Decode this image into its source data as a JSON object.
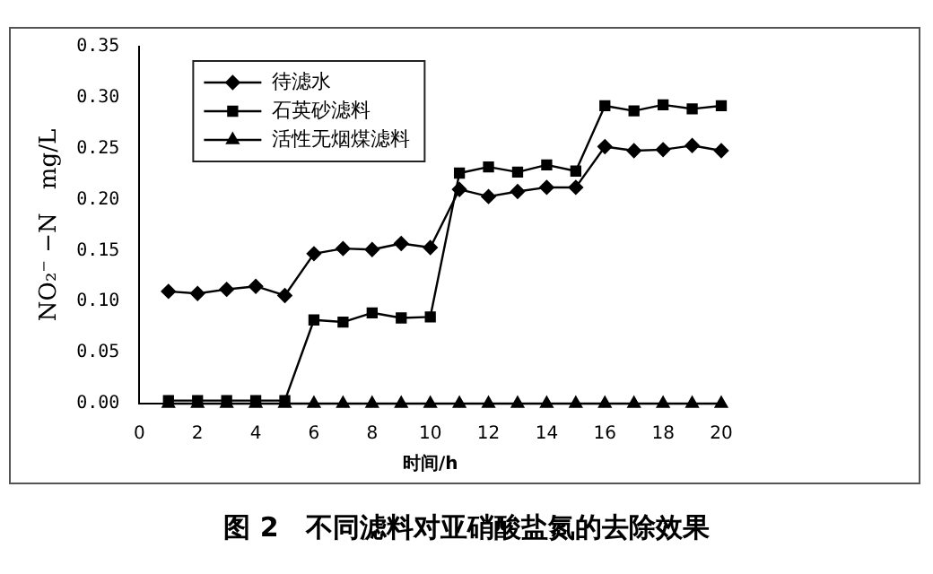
{
  "chart_data": {
    "type": "line",
    "title": "图 2　不同滤料对亚硝酸盐氮的去除效果",
    "xlabel": "时间/h",
    "ylabel": "NO₂⁻ −N　mg/L",
    "x": [
      1,
      2,
      3,
      4,
      5,
      6,
      7,
      8,
      9,
      10,
      11,
      12,
      13,
      14,
      15,
      16,
      17,
      18,
      19,
      20
    ],
    "xlim": [
      0,
      20
    ],
    "xticks": [
      0,
      2,
      4,
      6,
      8,
      10,
      12,
      14,
      16,
      18,
      20
    ],
    "ylim": [
      0,
      0.35
    ],
    "yticks": [
      {
        "value": 0,
        "label": "0.00"
      },
      {
        "value": 0.05,
        "label": "0.05"
      },
      {
        "value": 0.1,
        "label": "0.10"
      },
      {
        "value": 0.15,
        "label": "0.15"
      },
      {
        "value": 0.2,
        "label": "0.20"
      },
      {
        "value": 0.25,
        "label": "0.25"
      },
      {
        "value": 0.3,
        "label": "0.30"
      },
      {
        "value": 0.35,
        "label": "0.35"
      }
    ],
    "grid": false,
    "legend": "top left",
    "line_style": "solid",
    "series": [
      {
        "name": "待滤水",
        "color": "#000000",
        "marker": "diamond",
        "values": [
          0.11,
          0.108,
          0.112,
          0.115,
          0.106,
          0.147,
          0.152,
          0.151,
          0.157,
          0.153,
          0.21,
          0.203,
          0.208,
          0.212,
          0.212,
          0.252,
          0.248,
          0.249,
          0.253,
          0.248
        ]
      },
      {
        "name": "石英砂滤料",
        "color": "#000000",
        "marker": "square",
        "values": [
          0.003,
          0.003,
          0.003,
          0.003,
          0.003,
          0.082,
          0.08,
          0.089,
          0.084,
          0.085,
          0.226,
          0.232,
          0.227,
          0.234,
          0.228,
          0.292,
          0.287,
          0.293,
          0.289,
          0.292
        ]
      },
      {
        "name": "活性无烟煤滤料",
        "color": "#000000",
        "marker": "triangle",
        "values": [
          0,
          0,
          0,
          0,
          0,
          0,
          0,
          0,
          0,
          0,
          0,
          0,
          0,
          0,
          0,
          0,
          0,
          0,
          0,
          0
        ]
      }
    ]
  }
}
